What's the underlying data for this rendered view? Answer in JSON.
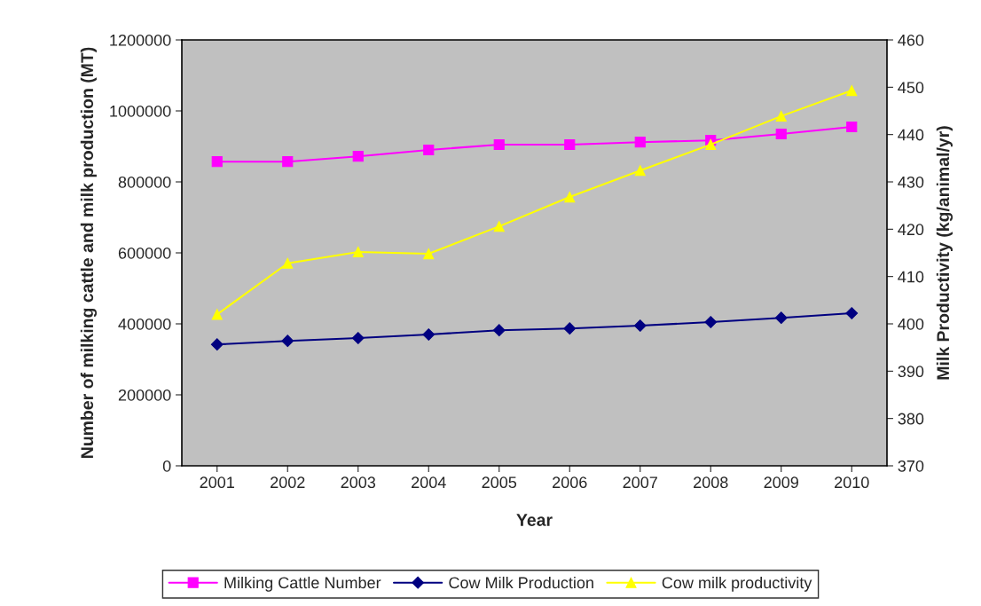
{
  "chart_data": {
    "type": "line",
    "xlabel": "Year",
    "ylabel": "Number of milking cattle and milk production (MT)",
    "y2label": "Milk Productivity (kg/animal/yr)",
    "categories": [
      "2001",
      "2002",
      "2003",
      "2004",
      "2005",
      "2006",
      "2007",
      "2008",
      "2009",
      "2010"
    ],
    "series": [
      {
        "name": "Milking Cattle Number",
        "color": "#ff00ff",
        "marker": "square",
        "values": [
          857000,
          857000,
          872000,
          890000,
          905000,
          905000,
          912000,
          917000,
          935000,
          955000
        ]
      },
      {
        "name": "Cow Milk Production",
        "color": "#000080",
        "marker": "diamond",
        "values": [
          342000,
          352000,
          360000,
          370000,
          382000,
          387000,
          395000,
          405000,
          417000,
          430000
        ]
      },
      {
        "name": "Cow milk productivity",
        "color": "#ffff00",
        "marker": "triangle",
        "axis": "y2",
        "values": [
          402,
          412.8,
          415.2,
          414.8,
          420.6,
          426.8,
          432.4,
          437.9,
          443.9,
          449.3
        ]
      }
    ],
    "ylim": [
      0,
      1200000
    ],
    "yticks": [
      0,
      200000,
      400000,
      600000,
      800000,
      1000000,
      1200000
    ],
    "y2lim": [
      370,
      460
    ],
    "y2ticks": [
      370,
      380,
      390,
      400,
      410,
      420,
      430,
      440,
      450,
      460
    ],
    "grid": false,
    "legend": "bottom"
  }
}
